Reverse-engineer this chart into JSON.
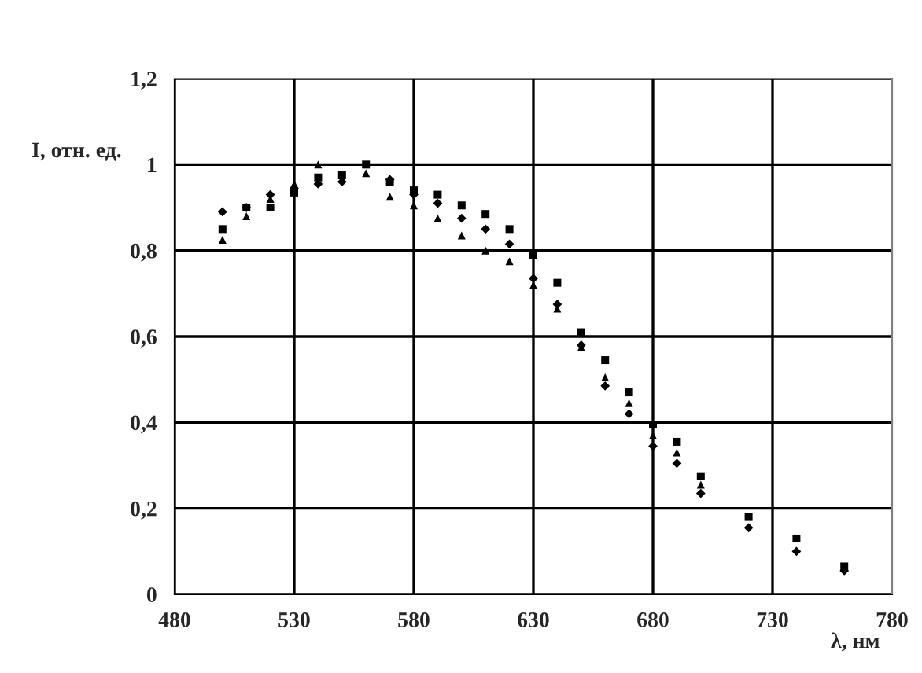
{
  "chart_data": {
    "type": "scatter",
    "xlabel": "λ, нм",
    "ylabel": "I, отн. ед.",
    "x": [
      500,
      510,
      520,
      530,
      540,
      550,
      560,
      570,
      580,
      590,
      600,
      610,
      620,
      630,
      640,
      650,
      660,
      670,
      680,
      690,
      700,
      720,
      740,
      760
    ],
    "series": [
      {
        "color": "#000000",
        "marker": "square",
        "values": [
          0.85,
          0.9,
          0.9,
          0.935,
          0.97,
          0.975,
          1.0,
          0.96,
          0.94,
          0.93,
          0.905,
          0.885,
          0.85,
          0.79,
          0.725,
          0.61,
          0.545,
          0.47,
          0.395,
          0.355,
          0.275,
          0.18,
          0.13,
          0.065
        ]
      },
      {
        "color": "#000000",
        "marker": "triangle",
        "values": [
          0.825,
          0.88,
          0.92,
          0.955,
          1.0,
          null,
          0.98,
          0.925,
          0.905,
          0.875,
          0.835,
          0.8,
          0.775,
          0.72,
          0.665,
          0.575,
          0.505,
          0.445,
          0.37,
          0.33,
          0.255,
          null,
          null,
          null
        ]
      },
      {
        "color": "#000000",
        "marker": "diamond",
        "values": [
          0.89,
          0.9,
          0.93,
          0.945,
          0.955,
          0.96,
          null,
          0.965,
          0.93,
          0.91,
          0.875,
          0.85,
          0.815,
          0.735,
          0.675,
          0.58,
          0.485,
          0.42,
          0.345,
          0.305,
          0.235,
          0.155,
          0.1,
          0.055
        ]
      }
    ],
    "xlim": [
      480,
      780
    ],
    "xticks": [
      480,
      530,
      580,
      630,
      680,
      730,
      780
    ],
    "ylim": [
      0,
      1.2
    ],
    "yticks": [
      {
        "value": 0,
        "label": "0"
      },
      {
        "value": 0.2,
        "label": "0,2"
      },
      {
        "value": 0.4,
        "label": "0,4"
      },
      {
        "value": 0.6,
        "label": "0,6"
      },
      {
        "value": 0.8,
        "label": "0,8"
      },
      {
        "value": 1,
        "label": "1"
      },
      {
        "value": 1.2,
        "label": "1,2"
      }
    ],
    "grid": true,
    "legend": false
  }
}
